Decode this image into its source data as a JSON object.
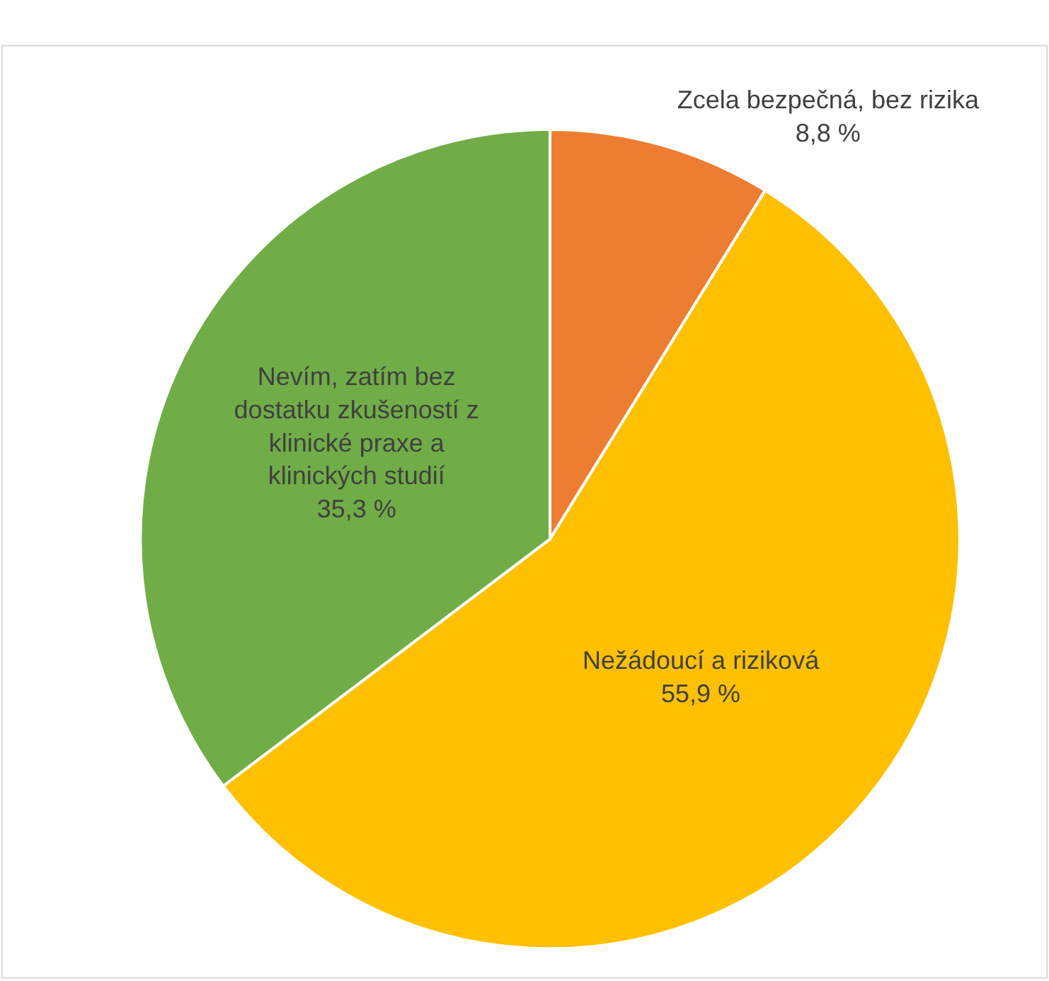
{
  "chart_data": {
    "type": "pie",
    "categories": [
      "Zcela bezpečná, bez rizika",
      "Nežádoucí a riziková",
      "Nevím, zatím bez dostatku zkušeností z klinické praxe a klinických studií"
    ],
    "values": [
      8.8,
      55.9,
      35.3
    ],
    "value_labels": [
      "8,8 %",
      "55,9 %",
      "35,3 %"
    ],
    "colors": [
      "#ed7d31",
      "#ffc000",
      "#70ad47"
    ],
    "legend": false
  }
}
